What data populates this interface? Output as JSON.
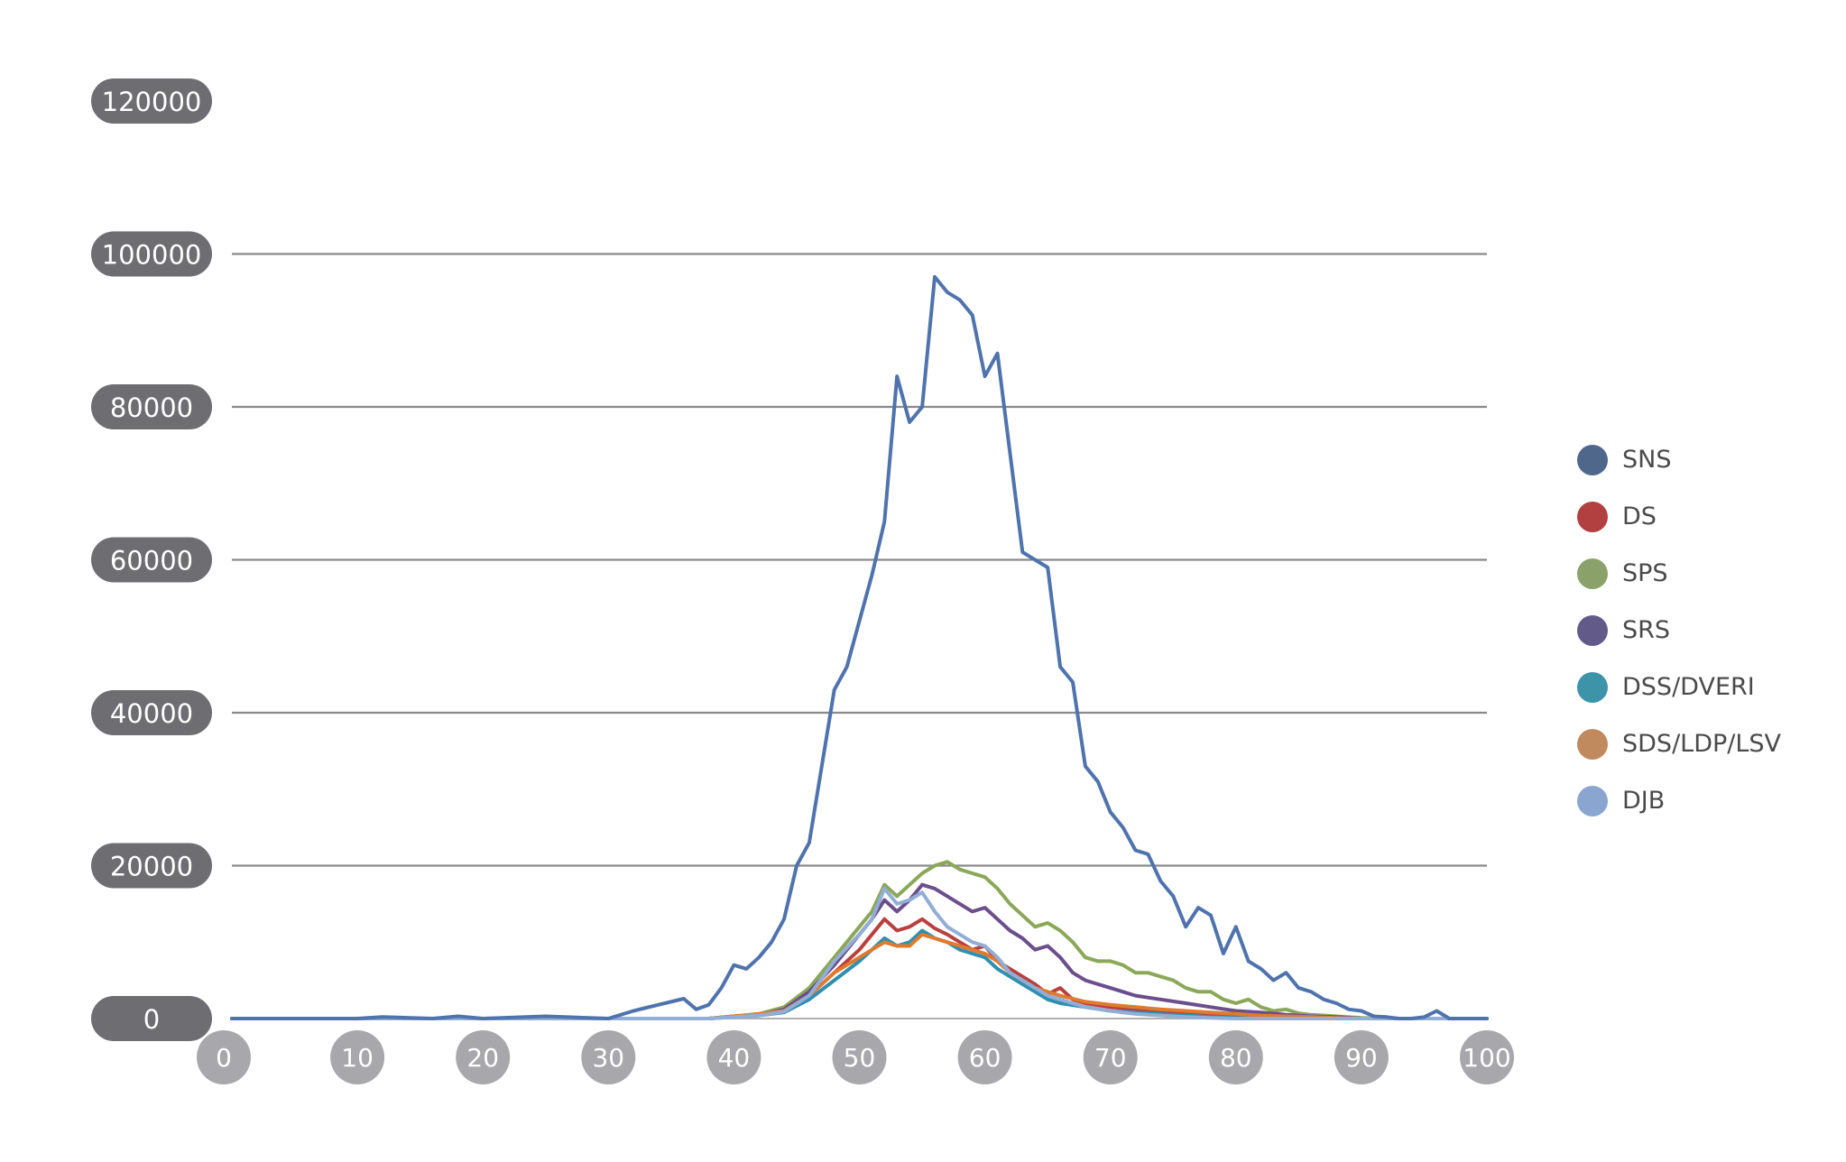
{
  "chart_data": {
    "type": "line",
    "title": "",
    "xlabel": "",
    "ylabel": "",
    "xlim": [
      0,
      100
    ],
    "ylim": [
      0,
      120000
    ],
    "x_ticks": [
      "0",
      "10",
      "20",
      "30",
      "40",
      "50",
      "60",
      "70",
      "80",
      "90",
      "100"
    ],
    "y_ticks": [
      "0",
      "20000",
      "40000",
      "60000",
      "80000",
      "100000",
      "120000"
    ],
    "grid": true,
    "legend_position": "right",
    "series": [
      {
        "name": "SNS",
        "color": "#4f73ad",
        "legend_color": "#50678c",
        "points": [
          [
            0,
            0
          ],
          [
            10,
            0
          ],
          [
            12,
            200
          ],
          [
            16,
            0
          ],
          [
            18,
            300
          ],
          [
            20,
            0
          ],
          [
            25,
            300
          ],
          [
            30,
            0
          ],
          [
            32,
            1000
          ],
          [
            34,
            1800
          ],
          [
            36,
            2600
          ],
          [
            37,
            1200
          ],
          [
            38,
            1800
          ],
          [
            39,
            4000
          ],
          [
            40,
            7000
          ],
          [
            41,
            6500
          ],
          [
            42,
            8000
          ],
          [
            43,
            10000
          ],
          [
            44,
            13000
          ],
          [
            45,
            20000
          ],
          [
            46,
            23000
          ],
          [
            47,
            33000
          ],
          [
            48,
            43000
          ],
          [
            49,
            46000
          ],
          [
            50,
            52000
          ],
          [
            51,
            58000
          ],
          [
            52,
            65000
          ],
          [
            53,
            84000
          ],
          [
            54,
            78000
          ],
          [
            55,
            80000
          ],
          [
            56,
            97000
          ],
          [
            57,
            95000
          ],
          [
            58,
            94000
          ],
          [
            59,
            92000
          ],
          [
            60,
            84000
          ],
          [
            61,
            87000
          ],
          [
            62,
            74000
          ],
          [
            63,
            61000
          ],
          [
            64,
            60000
          ],
          [
            65,
            59000
          ],
          [
            66,
            46000
          ],
          [
            67,
            44000
          ],
          [
            68,
            33000
          ],
          [
            69,
            31000
          ],
          [
            70,
            27000
          ],
          [
            71,
            25000
          ],
          [
            72,
            22000
          ],
          [
            73,
            21500
          ],
          [
            74,
            18000
          ],
          [
            75,
            16000
          ],
          [
            76,
            12000
          ],
          [
            77,
            14500
          ],
          [
            78,
            13500
          ],
          [
            79,
            8500
          ],
          [
            80,
            12000
          ],
          [
            81,
            7500
          ],
          [
            82,
            6500
          ],
          [
            83,
            5000
          ],
          [
            84,
            6000
          ],
          [
            85,
            4000
          ],
          [
            86,
            3500
          ],
          [
            87,
            2500
          ],
          [
            88,
            2000
          ],
          [
            89,
            1200
          ],
          [
            90,
            1000
          ],
          [
            91,
            300
          ],
          [
            92,
            200
          ],
          [
            93,
            0
          ],
          [
            94,
            0
          ],
          [
            95,
            200
          ],
          [
            96,
            1000
          ],
          [
            97,
            0
          ],
          [
            100,
            0
          ]
        ]
      },
      {
        "name": "DS",
        "color": "#b94040",
        "legend_color": "#b24040",
        "points": [
          [
            0,
            0
          ],
          [
            38,
            0
          ],
          [
            40,
            300
          ],
          [
            42,
            500
          ],
          [
            44,
            1000
          ],
          [
            46,
            3000
          ],
          [
            48,
            6000
          ],
          [
            50,
            9000
          ],
          [
            51,
            11000
          ],
          [
            52,
            13000
          ],
          [
            53,
            11500
          ],
          [
            54,
            12000
          ],
          [
            55,
            13000
          ],
          [
            56,
            11800
          ],
          [
            57,
            11000
          ],
          [
            58,
            10000
          ],
          [
            59,
            9000
          ],
          [
            60,
            9500
          ],
          [
            61,
            7500
          ],
          [
            62,
            6500
          ],
          [
            63,
            5500
          ],
          [
            64,
            4500
          ],
          [
            65,
            3200
          ],
          [
            66,
            4000
          ],
          [
            67,
            2500
          ],
          [
            68,
            2000
          ],
          [
            70,
            1500
          ],
          [
            72,
            1200
          ],
          [
            74,
            1000
          ],
          [
            76,
            700
          ],
          [
            78,
            500
          ],
          [
            80,
            300
          ],
          [
            85,
            100
          ],
          [
            90,
            0
          ],
          [
            100,
            0
          ]
        ]
      },
      {
        "name": "SPS",
        "color": "#8ba858",
        "legend_color": "#8aa26a",
        "points": [
          [
            0,
            0
          ],
          [
            38,
            0
          ],
          [
            40,
            300
          ],
          [
            42,
            600
          ],
          [
            44,
            1500
          ],
          [
            46,
            4000
          ],
          [
            48,
            8000
          ],
          [
            50,
            12000
          ],
          [
            51,
            14000
          ],
          [
            52,
            17500
          ],
          [
            53,
            16000
          ],
          [
            54,
            17500
          ],
          [
            55,
            19000
          ],
          [
            56,
            20000
          ],
          [
            57,
            20500
          ],
          [
            58,
            19500
          ],
          [
            59,
            19000
          ],
          [
            60,
            18500
          ],
          [
            61,
            17000
          ],
          [
            62,
            15000
          ],
          [
            63,
            13500
          ],
          [
            64,
            12000
          ],
          [
            65,
            12500
          ],
          [
            66,
            11500
          ],
          [
            67,
            10000
          ],
          [
            68,
            8000
          ],
          [
            69,
            7500
          ],
          [
            70,
            7500
          ],
          [
            71,
            7000
          ],
          [
            72,
            6000
          ],
          [
            73,
            6000
          ],
          [
            74,
            5500
          ],
          [
            75,
            5000
          ],
          [
            76,
            4000
          ],
          [
            77,
            3500
          ],
          [
            78,
            3500
          ],
          [
            79,
            2500
          ],
          [
            80,
            2000
          ],
          [
            81,
            2500
          ],
          [
            82,
            1500
          ],
          [
            83,
            1000
          ],
          [
            84,
            1200
          ],
          [
            85,
            700
          ],
          [
            86,
            500
          ],
          [
            88,
            300
          ],
          [
            90,
            100
          ],
          [
            92,
            0
          ],
          [
            100,
            0
          ]
        ]
      },
      {
        "name": "SRS",
        "color": "#6b4e8c",
        "legend_color": "#625b8a",
        "points": [
          [
            0,
            0
          ],
          [
            38,
            0
          ],
          [
            40,
            300
          ],
          [
            42,
            500
          ],
          [
            44,
            1200
          ],
          [
            46,
            3500
          ],
          [
            48,
            7000
          ],
          [
            50,
            11000
          ],
          [
            51,
            13000
          ],
          [
            52,
            15500
          ],
          [
            53,
            14000
          ],
          [
            54,
            15500
          ],
          [
            55,
            17500
          ],
          [
            56,
            17000
          ],
          [
            57,
            16000
          ],
          [
            58,
            15000
          ],
          [
            59,
            14000
          ],
          [
            60,
            14500
          ],
          [
            61,
            13000
          ],
          [
            62,
            11500
          ],
          [
            63,
            10500
          ],
          [
            64,
            9000
          ],
          [
            65,
            9500
          ],
          [
            66,
            8000
          ],
          [
            67,
            6000
          ],
          [
            68,
            5000
          ],
          [
            69,
            4500
          ],
          [
            70,
            4000
          ],
          [
            71,
            3500
          ],
          [
            72,
            3000
          ],
          [
            74,
            2500
          ],
          [
            76,
            2000
          ],
          [
            78,
            1500
          ],
          [
            80,
            1000
          ],
          [
            82,
            800
          ],
          [
            84,
            500
          ],
          [
            86,
            300
          ],
          [
            88,
            200
          ],
          [
            90,
            0
          ],
          [
            100,
            0
          ]
        ]
      },
      {
        "name": "DSS/DVERI",
        "color": "#2f8fb0",
        "legend_color": "#3d93a8",
        "points": [
          [
            0,
            0
          ],
          [
            38,
            0
          ],
          [
            40,
            200
          ],
          [
            42,
            400
          ],
          [
            44,
            800
          ],
          [
            46,
            2500
          ],
          [
            48,
            5000
          ],
          [
            50,
            7500
          ],
          [
            51,
            9000
          ],
          [
            52,
            10500
          ],
          [
            53,
            9500
          ],
          [
            54,
            10000
          ],
          [
            55,
            11500
          ],
          [
            56,
            10500
          ],
          [
            57,
            10000
          ],
          [
            58,
            9000
          ],
          [
            59,
            8500
          ],
          [
            60,
            8000
          ],
          [
            61,
            6500
          ],
          [
            62,
            5500
          ],
          [
            63,
            4500
          ],
          [
            64,
            3500
          ],
          [
            65,
            2500
          ],
          [
            66,
            2000
          ],
          [
            68,
            1500
          ],
          [
            70,
            1000
          ],
          [
            72,
            800
          ],
          [
            74,
            600
          ],
          [
            76,
            400
          ],
          [
            78,
            200
          ],
          [
            80,
            100
          ],
          [
            85,
            0
          ],
          [
            100,
            0
          ]
        ]
      },
      {
        "name": "SDS/LDP/LSV",
        "color": "#e07a2e",
        "legend_color": "#c08a5e",
        "points": [
          [
            0,
            0
          ],
          [
            38,
            0
          ],
          [
            40,
            300
          ],
          [
            42,
            600
          ],
          [
            44,
            1000
          ],
          [
            46,
            3000
          ],
          [
            48,
            6000
          ],
          [
            50,
            8000
          ],
          [
            51,
            9000
          ],
          [
            52,
            10000
          ],
          [
            53,
            9500
          ],
          [
            54,
            9500
          ],
          [
            55,
            11000
          ],
          [
            56,
            10500
          ],
          [
            57,
            10000
          ],
          [
            58,
            9500
          ],
          [
            59,
            9000
          ],
          [
            60,
            8500
          ],
          [
            61,
            7500
          ],
          [
            62,
            6000
          ],
          [
            63,
            5000
          ],
          [
            64,
            4000
          ],
          [
            65,
            3500
          ],
          [
            66,
            3000
          ],
          [
            68,
            2200
          ],
          [
            70,
            1800
          ],
          [
            72,
            1500
          ],
          [
            74,
            1200
          ],
          [
            76,
            1000
          ],
          [
            78,
            800
          ],
          [
            80,
            600
          ],
          [
            82,
            400
          ],
          [
            84,
            300
          ],
          [
            86,
            200
          ],
          [
            88,
            100
          ],
          [
            90,
            0
          ],
          [
            100,
            0
          ]
        ]
      },
      {
        "name": "DJB",
        "color": "#92add6",
        "legend_color": "#8aa6d0",
        "points": [
          [
            0,
            0
          ],
          [
            38,
            0
          ],
          [
            40,
            200
          ],
          [
            42,
            400
          ],
          [
            44,
            900
          ],
          [
            46,
            3000
          ],
          [
            48,
            7500
          ],
          [
            50,
            11000
          ],
          [
            51,
            13000
          ],
          [
            52,
            17000
          ],
          [
            53,
            15000
          ],
          [
            54,
            15500
          ],
          [
            55,
            16500
          ],
          [
            56,
            14000
          ],
          [
            57,
            12000
          ],
          [
            58,
            11000
          ],
          [
            59,
            10000
          ],
          [
            60,
            9500
          ],
          [
            61,
            8000
          ],
          [
            62,
            6000
          ],
          [
            63,
            5000
          ],
          [
            64,
            4000
          ],
          [
            65,
            3000
          ],
          [
            66,
            2500
          ],
          [
            68,
            1500
          ],
          [
            70,
            1000
          ],
          [
            72,
            600
          ],
          [
            74,
            400
          ],
          [
            76,
            200
          ],
          [
            78,
            100
          ],
          [
            80,
            0
          ],
          [
            100,
            0
          ]
        ]
      }
    ]
  }
}
